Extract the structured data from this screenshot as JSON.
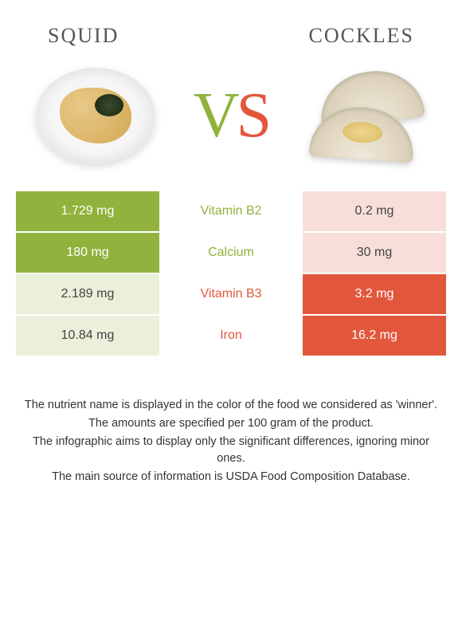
{
  "foods": {
    "left": {
      "name": "Squid",
      "color": "#91b23c"
    },
    "right": {
      "name": "Cockles",
      "color": "#e2573c"
    }
  },
  "vs": {
    "v_color": "#91b23c",
    "s_color": "#e2573c",
    "v": "V",
    "s": "S"
  },
  "colors": {
    "green_bg": "#91b23c",
    "green_soft_bg": "#eaf0d9",
    "red_bg": "#e2573c",
    "red_soft_bg": "#f8ded8",
    "white_text": "#ffffff",
    "dark_text": "#444444"
  },
  "table": {
    "rows": [
      {
        "nutrient": "Vitamin B2",
        "left": "1.729 mg",
        "right": "0.2 mg",
        "winner": "left"
      },
      {
        "nutrient": "Calcium",
        "left": "180 mg",
        "right": "30 mg",
        "winner": "left"
      },
      {
        "nutrient": "Vitamin B3",
        "left": "2.189 mg",
        "right": "3.2 mg",
        "winner": "right"
      },
      {
        "nutrient": "Iron",
        "left": "10.84 mg",
        "right": "16.2 mg",
        "winner": "right"
      }
    ]
  },
  "footnotes": [
    "The nutrient name is displayed in the color of the food we considered as 'winner'.",
    "The amounts are specified per 100 gram of the product.",
    "The infographic aims to display only the significant differences, ignoring minor ones.",
    "The main source of information is USDA Food Composition Database."
  ]
}
